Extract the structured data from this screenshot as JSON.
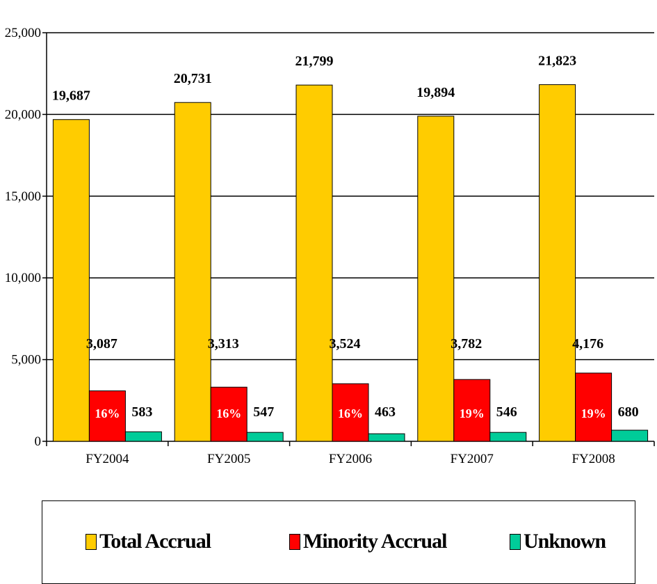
{
  "chart_data": {
    "type": "bar",
    "categories": [
      "FY2004",
      "FY2005",
      "FY2006",
      "FY2007",
      "FY2008"
    ],
    "series": [
      {
        "name": "Total Accrual",
        "values": [
          19687,
          20731,
          21799,
          19894,
          21823
        ],
        "labels": [
          "19,687",
          "20,731",
          "21,799",
          "19,894",
          "21,823"
        ],
        "color": "#FFCC00"
      },
      {
        "name": "Minority Accrual",
        "values": [
          3087,
          3313,
          3524,
          3782,
          4176
        ],
        "labels": [
          "3,087",
          "3,313",
          "3,524",
          "3,782",
          "4,176"
        ],
        "color": "#FF0000",
        "percent_labels": [
          "16%",
          "16%",
          "16%",
          "19%",
          "19%"
        ]
      },
      {
        "name": "Unknown",
        "values": [
          583,
          547,
          463,
          546,
          680
        ],
        "labels": [
          "583",
          "547",
          "463",
          "546",
          "680"
        ],
        "color": "#00CC99"
      }
    ],
    "ylim": [
      0,
      25000
    ],
    "yticks": [
      0,
      5000,
      10000,
      15000,
      20000,
      25000
    ],
    "ytick_labels": [
      "0",
      "5,000",
      "10,000",
      "15,000",
      "20,000",
      "25,000"
    ],
    "grid": true,
    "legend_position": "bottom"
  }
}
